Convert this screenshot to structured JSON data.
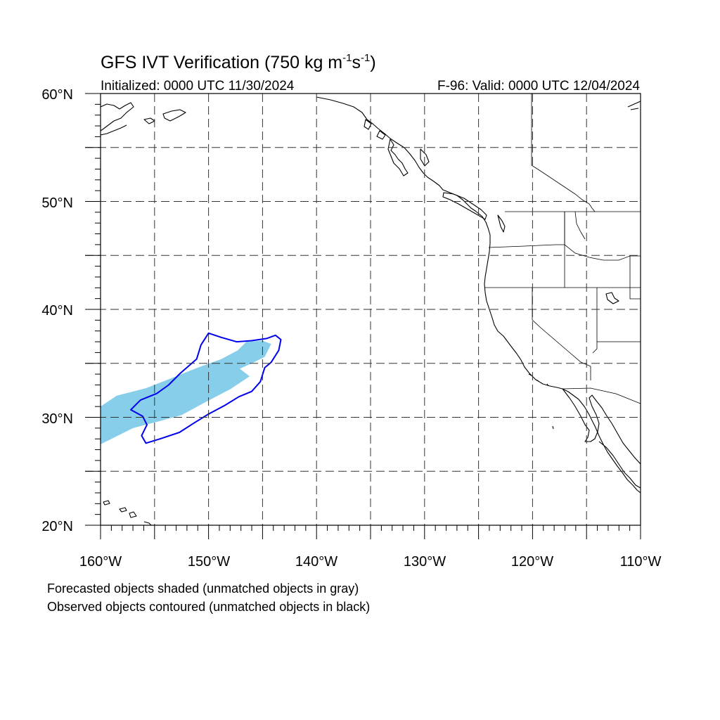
{
  "title": {
    "prefix": "GFS IVT Verification (750 kg m",
    "sup1": "-1",
    "mid": "s",
    "sup2": "-1",
    "suffix": ")"
  },
  "initialized": "Initialized: 0000 UTC 11/30/2024",
  "valid": "F-96: Valid: 0000 UTC 12/04/2024",
  "lat_labels": [
    "60°N",
    "50°N",
    "40°N",
    "30°N",
    "20°N"
  ],
  "lon_labels": [
    "160°W",
    "150°W",
    "140°W",
    "130°W",
    "120°W",
    "110°W"
  ],
  "map_extent": {
    "lon_min": -160,
    "lon_max": -110,
    "lat_min": 20,
    "lat_max": 60
  },
  "footnotes": [
    "Forecasted objects shaded (unmatched objects in gray)",
    "Observed objects contoured (unmatched objects in black)"
  ],
  "colors": {
    "forecast_fill": "#87ceeb",
    "observed_contour": "#0000ee",
    "coastline": "#000000"
  },
  "objects": {
    "forecast": {
      "name": "forecasted-ivt-object",
      "coords": [
        [
          -160,
          31
        ],
        [
          -158.5,
          32
        ],
        [
          -155.8,
          32.7
        ],
        [
          -153.5,
          33.6
        ],
        [
          -151,
          34.6
        ],
        [
          -148.8,
          35.4
        ],
        [
          -147.3,
          36.2
        ],
        [
          -146.5,
          37
        ],
        [
          -145,
          37.1
        ],
        [
          -144.2,
          36.8
        ],
        [
          -144.8,
          35.6
        ],
        [
          -146,
          35
        ],
        [
          -147.1,
          34.5
        ],
        [
          -146.2,
          33.8
        ],
        [
          -148,
          32.6
        ],
        [
          -150.3,
          31.4
        ],
        [
          -152.5,
          30.2
        ],
        [
          -154.7,
          29.6
        ],
        [
          -157,
          29
        ],
        [
          -160,
          27.5
        ]
      ]
    },
    "observed": {
      "name": "observed-ivt-contour",
      "coords": [
        [
          -150,
          37.8
        ],
        [
          -148.8,
          37.4
        ],
        [
          -147.4,
          37
        ],
        [
          -146,
          37.1
        ],
        [
          -144.6,
          37.3
        ],
        [
          -143.8,
          37.6
        ],
        [
          -143.3,
          37.2
        ],
        [
          -143.5,
          36.2
        ],
        [
          -144.2,
          35.1
        ],
        [
          -144.8,
          34.6
        ],
        [
          -145.2,
          33.3
        ],
        [
          -146,
          32.4
        ],
        [
          -147.2,
          31.9
        ],
        [
          -148.5,
          31.1
        ],
        [
          -150,
          30.3
        ],
        [
          -151.3,
          29.5
        ],
        [
          -152.7,
          28.6
        ],
        [
          -154.5,
          28
        ],
        [
          -155.8,
          27.6
        ],
        [
          -156.2,
          28.3
        ],
        [
          -155.7,
          29.3
        ],
        [
          -156.1,
          30.1
        ],
        [
          -157.2,
          30.7
        ],
        [
          -156.3,
          31.6
        ],
        [
          -154.8,
          32.2
        ],
        [
          -153.7,
          33
        ],
        [
          -152.6,
          34.1
        ],
        [
          -151.1,
          35.4
        ],
        [
          -150.7,
          36.7
        ]
      ]
    }
  }
}
